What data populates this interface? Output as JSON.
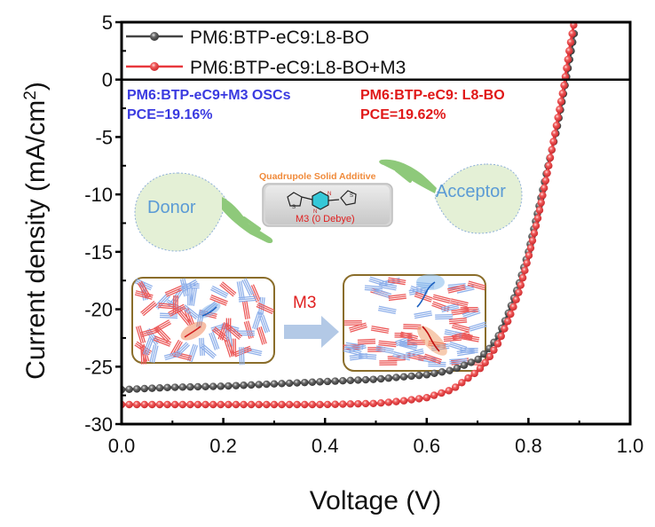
{
  "chart_data": {
    "type": "line",
    "title": "",
    "xlabel": "Voltage (V)",
    "ylabel": "Current density (mA/cm²)",
    "ylabel_main": "Current density (mA/cm",
    "ylabel_sup": "2",
    "ylabel_close": ")",
    "xlim": [
      0.0,
      1.0
    ],
    "ylim": [
      -30,
      5
    ],
    "xticks": [
      "0.0",
      "0.2",
      "0.4",
      "0.6",
      "0.8",
      "1.0"
    ],
    "yticks": [
      "5",
      "0",
      "-5",
      "-10",
      "-15",
      "-20",
      "-25",
      "-30"
    ],
    "grid": false,
    "legend_position": "top-left",
    "series": [
      {
        "name": "PM6:BTP-eC9:L8-BO",
        "color": "#444444",
        "marker": "sphere",
        "x": [
          0.0,
          0.1,
          0.2,
          0.3,
          0.4,
          0.5,
          0.55,
          0.6,
          0.65,
          0.7,
          0.72,
          0.74,
          0.76,
          0.78,
          0.8,
          0.82,
          0.84,
          0.855,
          0.87,
          0.88,
          0.89
        ],
        "y": [
          -27.0,
          -26.8,
          -26.7,
          -26.5,
          -26.3,
          -26.1,
          -25.9,
          -25.7,
          -25.3,
          -24.4,
          -23.6,
          -22.4,
          -20.4,
          -18.0,
          -15.0,
          -11.2,
          -7.2,
          -4.5,
          -1.0,
          1.5,
          4.0
        ]
      },
      {
        "name": "PM6:BTP-eC9:L8-BO+M3",
        "color": "#e8383d",
        "marker": "sphere",
        "x": [
          0.0,
          0.1,
          0.2,
          0.3,
          0.4,
          0.5,
          0.55,
          0.6,
          0.65,
          0.7,
          0.72,
          0.74,
          0.76,
          0.78,
          0.8,
          0.82,
          0.84,
          0.855,
          0.87,
          0.88,
          0.89
        ],
        "y": [
          -28.3,
          -28.3,
          -28.3,
          -28.3,
          -28.3,
          -28.2,
          -28.0,
          -27.7,
          -27.0,
          -25.4,
          -24.4,
          -23.0,
          -21.0,
          -18.7,
          -15.5,
          -11.8,
          -7.5,
          -4.0,
          -0.5,
          2.5,
          5.0
        ]
      }
    ],
    "annotations": [
      {
        "text": "PM6:BTP-eC9+M3 OSCs",
        "color": "#3a3ae0"
      },
      {
        "text": "PCE=19.16%",
        "color": "#3a3ae0"
      },
      {
        "text": "PM6:BTP-eC9: L8-BO",
        "color": "#e01818"
      },
      {
        "text": "PCE=19.62%",
        "color": "#e01818"
      }
    ]
  },
  "inset": {
    "additive_title": "Quadrupole Solid Additive",
    "molecule_label": "M3 (0 Debye)",
    "donor_label": "Donor",
    "acceptor_label": "Acceptor",
    "arrow_label": "M3",
    "atom_n": "N",
    "atom_s": "S"
  }
}
